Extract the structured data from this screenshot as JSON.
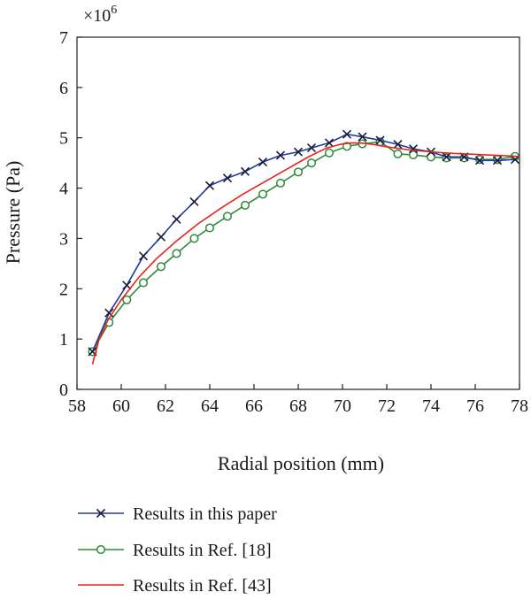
{
  "chart_data": {
    "type": "line",
    "title": "",
    "xlabel": "Radial position (mm)",
    "ylabel": "Pressure (Pa)",
    "y_multiplier_base": "×10",
    "y_multiplier_exp": "6",
    "xlim": [
      58,
      78
    ],
    "ylim": [
      0,
      7
    ],
    "xticks": [
      "58",
      "60",
      "62",
      "64",
      "66",
      "68",
      "70",
      "72",
      "74",
      "76",
      "78"
    ],
    "yticks": [
      "0",
      "1",
      "2",
      "3",
      "4",
      "5",
      "6",
      "7"
    ],
    "grid": false,
    "legend_position": "bottom",
    "series": [
      {
        "name": "Results in this paper",
        "color": "#1f3c9e",
        "marker": "x",
        "x": [
          58.7,
          59.45,
          60.25,
          61.0,
          61.8,
          62.5,
          63.3,
          64.0,
          64.8,
          65.6,
          66.4,
          67.2,
          68.0,
          68.6,
          69.4,
          70.2,
          70.9,
          71.7,
          72.5,
          73.2,
          74.0,
          74.7,
          75.5,
          76.2,
          77.0,
          77.8
        ],
        "y": [
          0.75,
          1.52,
          2.07,
          2.65,
          3.03,
          3.38,
          3.73,
          4.05,
          4.2,
          4.33,
          4.52,
          4.65,
          4.72,
          4.8,
          4.9,
          5.07,
          5.02,
          4.95,
          4.87,
          4.78,
          4.72,
          4.62,
          4.62,
          4.55,
          4.55,
          4.57
        ]
      },
      {
        "name": "Results in Ref. [18]",
        "color": "#2e8b3c",
        "marker": "o",
        "x": [
          58.7,
          59.45,
          60.25,
          61.0,
          61.8,
          62.5,
          63.3,
          64.0,
          64.8,
          65.6,
          66.4,
          67.2,
          68.0,
          68.6,
          69.4,
          70.2,
          70.9,
          71.7,
          72.5,
          73.2,
          74.0,
          74.7,
          75.5,
          76.2,
          77.0,
          77.8
        ],
        "y": [
          0.75,
          1.33,
          1.78,
          2.12,
          2.44,
          2.7,
          3.0,
          3.21,
          3.44,
          3.66,
          3.88,
          4.1,
          4.32,
          4.5,
          4.7,
          4.83,
          4.88,
          4.92,
          4.68,
          4.66,
          4.62,
          4.6,
          4.6,
          4.57,
          4.57,
          4.63
        ]
      },
      {
        "name": "Results in Ref. [43]",
        "color": "#e8231c",
        "marker": "none",
        "x": [
          58.7,
          59.0,
          59.4,
          60.0,
          60.8,
          61.6,
          62.5,
          63.5,
          64.5,
          65.5,
          66.5,
          67.5,
          68.5,
          69.3,
          70.0,
          70.5,
          71.0,
          71.5,
          72.0,
          73.0,
          74.0,
          75.0,
          76.0,
          77.0,
          78.0
        ],
        "y": [
          0.5,
          1.0,
          1.38,
          1.78,
          2.23,
          2.6,
          2.95,
          3.3,
          3.6,
          3.88,
          4.13,
          4.38,
          4.63,
          4.8,
          4.88,
          4.9,
          4.89,
          4.86,
          4.82,
          4.76,
          4.72,
          4.69,
          4.67,
          4.65,
          4.63
        ]
      }
    ]
  }
}
